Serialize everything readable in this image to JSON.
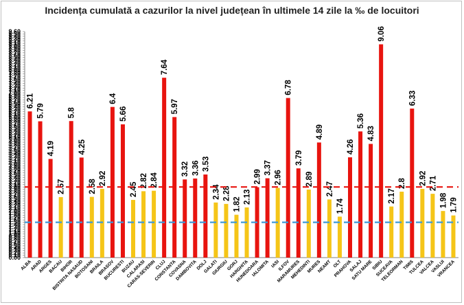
{
  "colors": {
    "high": "#e8140f",
    "low": "#f5c518",
    "red_line": "#e8140f",
    "blue_line": "#3d9ad9",
    "axis": "#7f7f7f"
  },
  "chart_data": {
    "type": "bar",
    "title": "Incidența cumulată a cazurilor la nivel județean în ultimele 14 zile la ‰ de locuitori",
    "xlabel": "",
    "ylabel": "",
    "ylim": [
      0,
      9.6
    ],
    "ytick_step": 0.1,
    "grid": false,
    "legend": "none",
    "categories": [
      "ALBA",
      "ARAD",
      "ARGES",
      "BACAU",
      "BIHOR",
      "BISTRITA NASAUD",
      "BOTOSANI",
      "BRAILA",
      "BRASOV",
      "BUCURESTI",
      "BUZAU",
      "CALARASI",
      "CARAS-SEVERIN",
      "CLUJ",
      "CONSTANTA",
      "COVASNA",
      "DAMBOVITA",
      "DOLJ",
      "GALATI",
      "GIURGIU",
      "GORJ",
      "HARGHITA",
      "HUNEDOARA",
      "IALOMITA",
      "IASI",
      "ILFOV",
      "MARAMURES",
      "MEHEDINTI",
      "MURES",
      "NEAMT",
      "OLT",
      "PRAHOVA",
      "SALAJ",
      "SATU MARE",
      "SIBIU",
      "SUCEAVA",
      "TELEORMAN",
      "TIMIS",
      "TULCEA",
      "VALCEA",
      "VASLUI",
      "VRANCEA"
    ],
    "values": [
      6.21,
      5.79,
      4.19,
      2.57,
      5.8,
      4.25,
      2.58,
      2.92,
      6.4,
      5.66,
      2.45,
      2.82,
      2.84,
      7.64,
      5.97,
      3.32,
      3.36,
      3.53,
      2.34,
      2.28,
      1.82,
      2.13,
      2.99,
      3.37,
      2.96,
      6.78,
      3.79,
      2.89,
      4.89,
      2.47,
      1.74,
      4.26,
      5.36,
      4.83,
      9.06,
      2.17,
      2.8,
      6.33,
      2.92,
      2.71,
      1.98,
      1.79
    ],
    "labels": [
      "6.21",
      "5.79",
      "4.19",
      "2.57",
      "5.8",
      "4.25",
      "2.58",
      "2.92",
      "6.4",
      "5.66",
      "2.45",
      "2.82",
      "2.84",
      "7.64",
      "5.97",
      "3.32",
      "3.36",
      "3.53",
      "2.34",
      "2.28",
      "1.82",
      "2.13",
      "2.99",
      "3.37",
      "2.96",
      "6.78",
      "3.79",
      "2.89",
      "4.89",
      "2.47",
      "1.74",
      "4.26",
      "5.36",
      "4.83",
      "9.06",
      "2.17",
      "2.8",
      "6.33",
      "2.92",
      "2.71",
      "1.98",
      "1.79"
    ],
    "bar_colors": [
      "high",
      "high",
      "high",
      "low",
      "high",
      "high",
      "low",
      "low",
      "high",
      "high",
      "low",
      "low",
      "low",
      "high",
      "high",
      "high",
      "high",
      "high",
      "low",
      "low",
      "low",
      "low",
      "high",
      "high",
      "low",
      "high",
      "high",
      "low",
      "high",
      "low",
      "low",
      "high",
      "high",
      "high",
      "high",
      "low",
      "low",
      "high",
      "low",
      "low",
      "low",
      "low"
    ],
    "threshold_lines": [
      {
        "value": 3.0,
        "color": "red_line",
        "style": "dashed"
      },
      {
        "value": 1.5,
        "color": "blue_line",
        "style": "dashed"
      }
    ]
  }
}
